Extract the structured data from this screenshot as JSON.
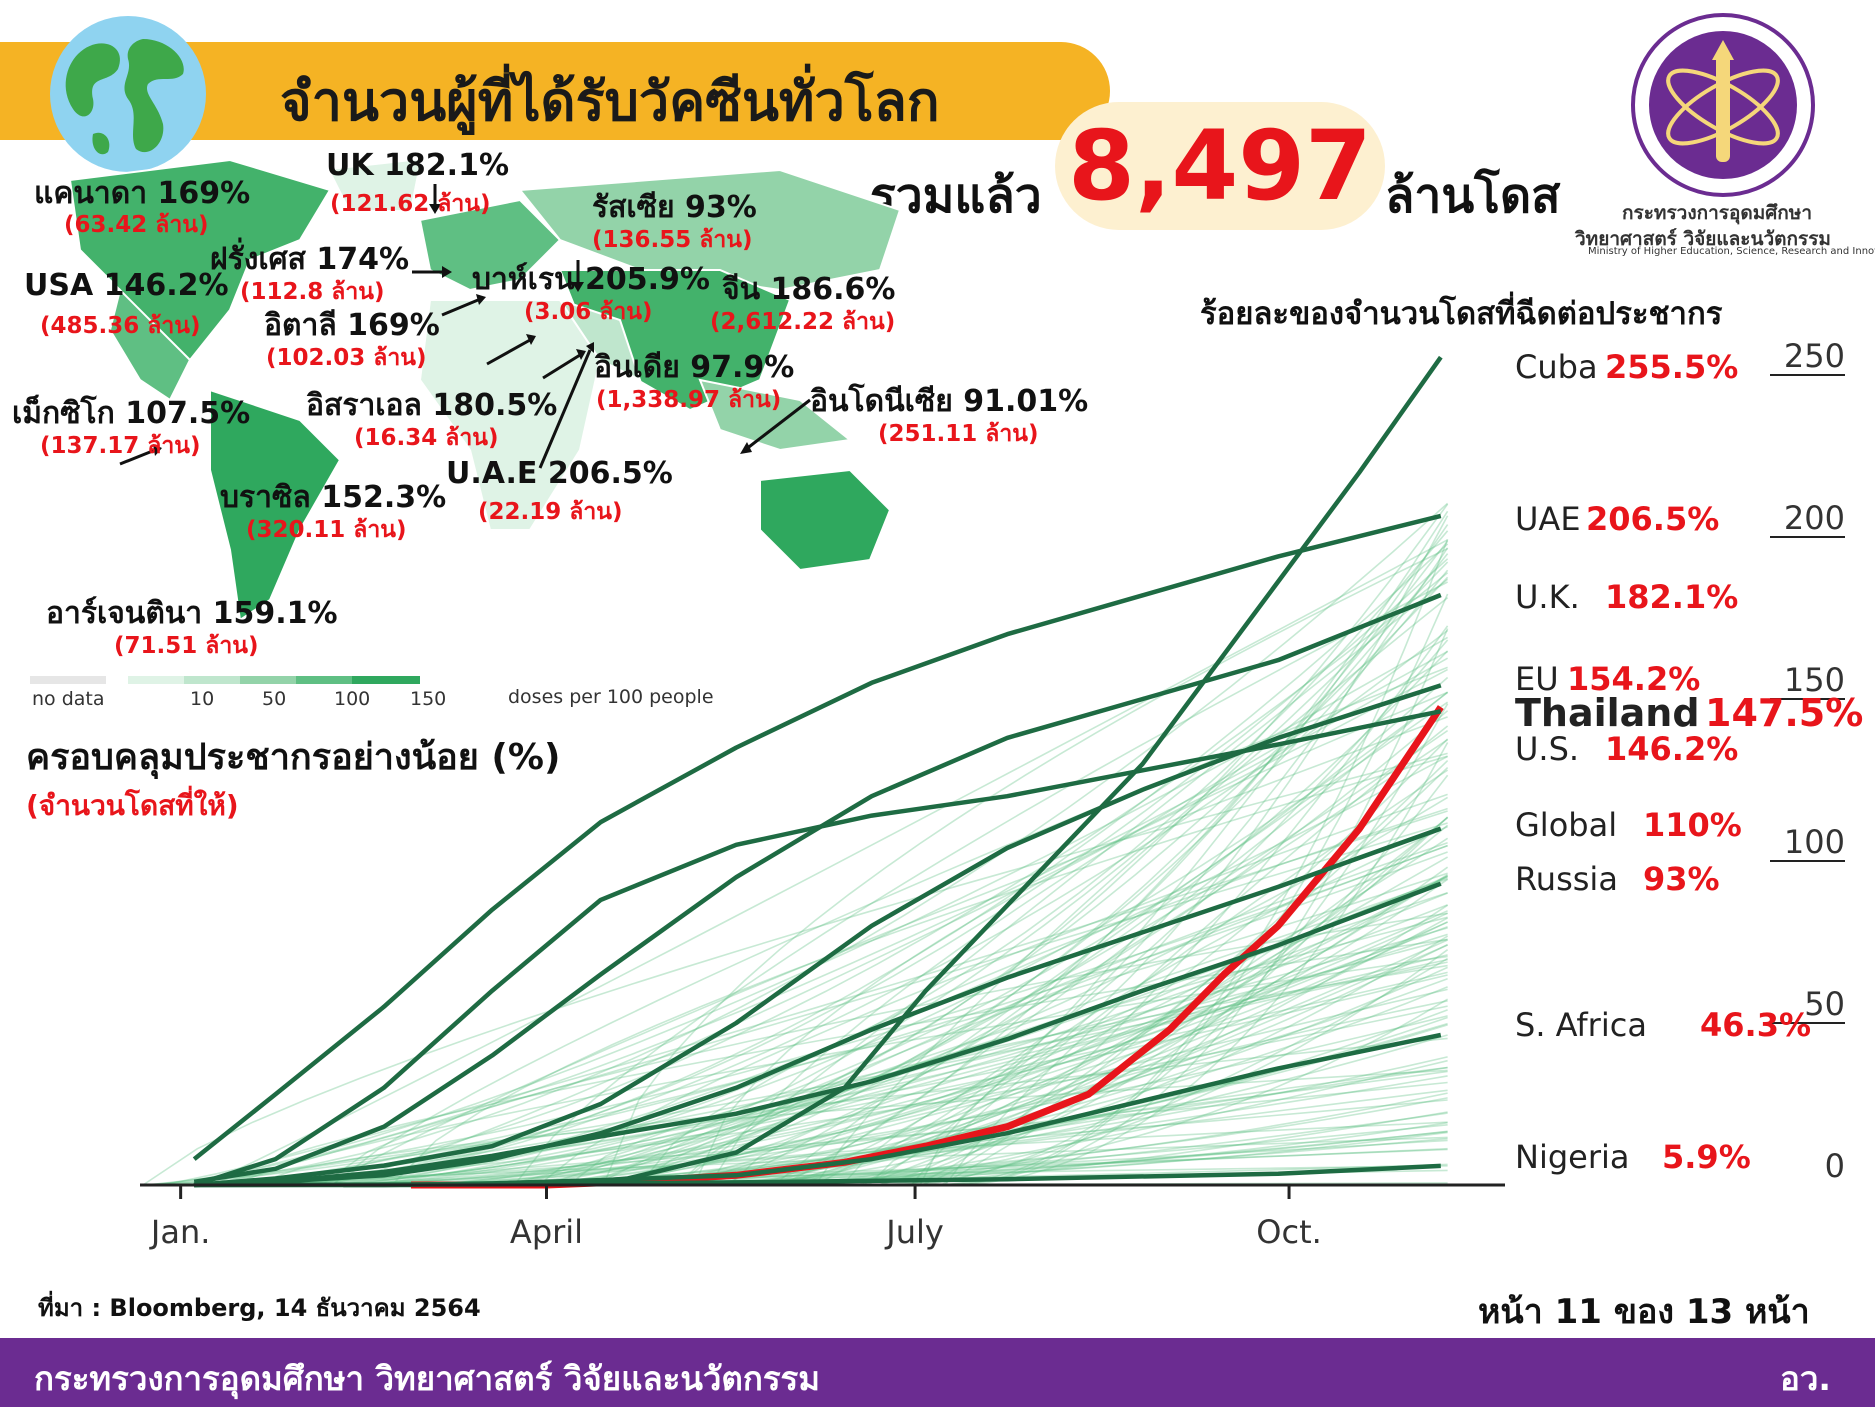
{
  "header": {
    "title": "จำนวนผู้ที่ได้รับวัคซีนทั่วโลก",
    "total_prefix": "รวมแล้ว",
    "total_value": "8,497",
    "total_suffix": "ล้านโดส"
  },
  "logo": {
    "name_th_line1": "กระทรวงการอุดมศึกษา",
    "name_th_line2": "วิทยาศาสตร์ วิจัยและนวัตกรรม",
    "name_en": "Ministry of Higher Education, Science, Research and Innovation"
  },
  "map": {
    "countries": [
      {
        "label": "แคนาดา 169%",
        "value": "(63.42 ล้าน)"
      },
      {
        "label": "UK 182.1%",
        "value": "(121.62 ล้าน)"
      },
      {
        "label": "รัสเซีย 93%",
        "value": "(136.55 ล้าน)"
      },
      {
        "label": "ฝรั่งเศส 174%",
        "value": "(112.8 ล้าน)"
      },
      {
        "label": "USA 146.2%",
        "value": "(485.36 ล้าน)"
      },
      {
        "label": "บาห์เรน 205.9%",
        "value": "(3.06 ล้าน)"
      },
      {
        "label": "จีน 186.6%",
        "value": "(2,612.22 ล้าน)"
      },
      {
        "label": "อิตาลี 169%",
        "value": "(102.03 ล้าน)"
      },
      {
        "label": "อินเดีย 97.9%",
        "value": "(1,338.97 ล้าน)"
      },
      {
        "label": "เม็กซิโก 107.5%",
        "value": "(137.17 ล้าน)"
      },
      {
        "label": "อิสราเอล 180.5%",
        "value": "(16.34 ล้าน)"
      },
      {
        "label": "อินโดนีเซีย 91.01%",
        "value": "(251.11 ล้าน)"
      },
      {
        "label": "U.A.E 206.5%",
        "value": "(22.19 ล้าน)"
      },
      {
        "label": "บราซิล 152.3%",
        "value": "(320.11 ล้าน)"
      },
      {
        "label": "อาร์เจนตินา 159.1%",
        "value": "(71.51 ล้าน)"
      }
    ],
    "legend": {
      "no_data": "no data",
      "ticks": [
        "10",
        "50",
        "100",
        "150"
      ],
      "unit": "doses per 100 people",
      "colors": [
        "#e6e6e6",
        "#dff3e6",
        "#bfe6cd",
        "#93d3a9",
        "#5fbf83",
        "#2fa85e"
      ]
    }
  },
  "coverage": {
    "label": "ครอบคลุมประชากรอย่างน้อย (%)",
    "sub": "(จำนวนโดสที่ให้)"
  },
  "chart_data": {
    "type": "line",
    "title": "ร้อยละของจำนวนโดสที่ฉีดต่อประชากร",
    "x_ticks": [
      "Jan.",
      "April",
      "July",
      "Oct."
    ],
    "y_ticks": [
      "0",
      "50",
      "100",
      "150",
      "200",
      "250"
    ],
    "ylim": [
      0,
      250
    ],
    "series": [
      {
        "name": "Cuba",
        "label": "255.5%",
        "color": "#1e6b43",
        "x": [
          0.15,
          0.23,
          0.3,
          0.36,
          0.44,
          0.52,
          0.58,
          0.66,
          0.74,
          0.82,
          0.9,
          0.96
        ],
        "y": [
          0,
          0,
          0,
          2,
          10,
          30,
          60,
          95,
          130,
          175,
          220,
          255.5
        ]
      },
      {
        "name": "UAE",
        "label": "206.5%",
        "color": "#1e6b43",
        "x": [
          0.04,
          0.1,
          0.18,
          0.26,
          0.34,
          0.44,
          0.54,
          0.64,
          0.74,
          0.84,
          0.96
        ],
        "y": [
          8,
          28,
          55,
          85,
          112,
          135,
          155,
          170,
          182,
          194,
          206.5
        ]
      },
      {
        "name": "U.K.",
        "label": "182.1%",
        "color": "#1e6b43",
        "x": [
          0.04,
          0.1,
          0.18,
          0.26,
          0.34,
          0.44,
          0.54,
          0.64,
          0.74,
          0.84,
          0.96
        ],
        "y": [
          1,
          5,
          18,
          40,
          65,
          95,
          120,
          138,
          150,
          162,
          182.1
        ]
      },
      {
        "name": "EU",
        "label": "154.2%",
        "color": "#1e6b43",
        "x": [
          0.04,
          0.1,
          0.18,
          0.26,
          0.34,
          0.44,
          0.54,
          0.64,
          0.74,
          0.84,
          0.96
        ],
        "y": [
          0,
          2,
          6,
          12,
          25,
          50,
          80,
          104,
          122,
          138,
          154.2
        ]
      },
      {
        "name": "Thailand",
        "label": "147.5%",
        "color": "#e8151b",
        "x": [
          0.2,
          0.3,
          0.36,
          0.44,
          0.52,
          0.58,
          0.64,
          0.7,
          0.76,
          0.8,
          0.84,
          0.9,
          0.96
        ],
        "y": [
          0,
          0,
          1,
          3,
          7,
          12,
          18,
          28,
          48,
          65,
          80,
          110,
          147.5
        ]
      },
      {
        "name": "U.S.",
        "label": "146.2%",
        "color": "#1e6b43",
        "x": [
          0.04,
          0.1,
          0.18,
          0.26,
          0.34,
          0.44,
          0.54,
          0.64,
          0.74,
          0.84,
          0.96
        ],
        "y": [
          0,
          8,
          30,
          60,
          88,
          105,
          114,
          120,
          128,
          136,
          146.2
        ]
      },
      {
        "name": "Global",
        "label": "110%",
        "color": "#1e6b43",
        "x": [
          0.04,
          0.1,
          0.18,
          0.26,
          0.34,
          0.44,
          0.54,
          0.64,
          0.74,
          0.84,
          0.96
        ],
        "y": [
          0,
          1,
          3,
          8,
          16,
          30,
          48,
          64,
          78,
          92,
          110
        ]
      },
      {
        "name": "Russia",
        "label": "93%",
        "color": "#1e6b43",
        "x": [
          0.04,
          0.1,
          0.18,
          0.26,
          0.34,
          0.44,
          0.54,
          0.64,
          0.74,
          0.84,
          0.96
        ],
        "y": [
          0,
          1,
          4,
          9,
          15,
          22,
          32,
          45,
          60,
          74,
          93
        ]
      },
      {
        "name": "S. Africa",
        "label": "46.3%",
        "color": "#1e6b43",
        "x": [
          0.04,
          0.1,
          0.18,
          0.26,
          0.34,
          0.44,
          0.54,
          0.64,
          0.74,
          0.84,
          0.96
        ],
        "y": [
          0,
          0,
          0,
          0.5,
          1.5,
          3,
          8,
          16,
          26,
          36,
          46.3
        ]
      },
      {
        "name": "Nigeria",
        "label": "5.9%",
        "color": "#1e6b43",
        "x": [
          0.04,
          0.26,
          0.44,
          0.64,
          0.84,
          0.96
        ],
        "y": [
          0,
          0.2,
          0.8,
          1.8,
          3.5,
          5.9
        ]
      }
    ]
  },
  "footer": {
    "source": "ที่มา : Bloomberg, 14 ธันวาคม 2564",
    "page": "หน้า 11 ของ 13 หน้า",
    "ministry": "กระทรวงการอุดมศึกษา วิทยาศาสตร์ วิจัยและนวัตกรรม",
    "abbr": "อว."
  }
}
